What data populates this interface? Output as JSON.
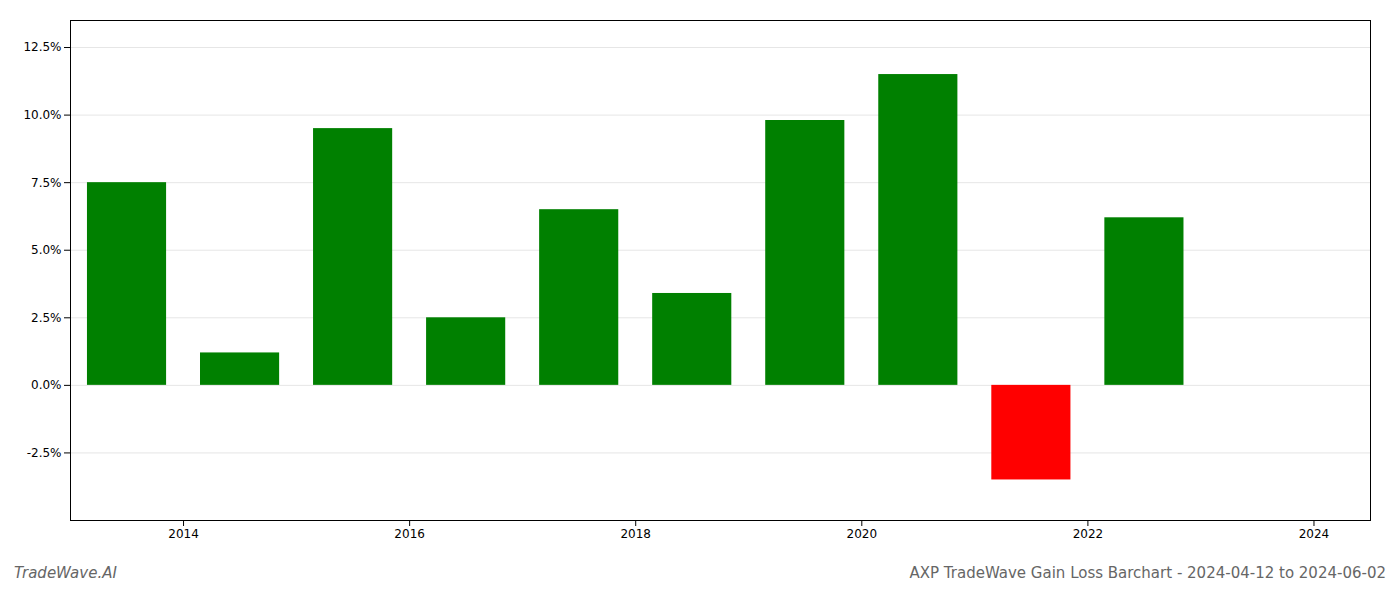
{
  "chart_data": {
    "type": "bar",
    "title": "AXP TradeWave Gain Loss Barchart - 2024-04-12 to 2024-06-02",
    "annotations": [
      "TradeWave.AI"
    ],
    "x": [
      2013.5,
      2014.5,
      2015.5,
      2016.5,
      2017.5,
      2018.5,
      2019.5,
      2020.5,
      2021.5,
      2022.5,
      2023.5
    ],
    "values": [
      0.075,
      0.012,
      0.095,
      0.025,
      0.065,
      0.034,
      0.098,
      0.115,
      -0.035,
      0.062,
      0.0
    ],
    "colors": [
      "#008000",
      "#008000",
      "#008000",
      "#008000",
      "#008000",
      "#008000",
      "#008000",
      "#008000",
      "#ff0000",
      "#008000",
      "#008000"
    ],
    "xlim": [
      2013.0,
      2024.5
    ],
    "xticks": [
      2014,
      2016,
      2018,
      2020,
      2022,
      2024
    ],
    "ylim": [
      -0.05,
      0.135
    ],
    "yticks": [
      {
        "value": -0.025,
        "label": "-2.5%"
      },
      {
        "value": 0.0,
        "label": "0.0%"
      },
      {
        "value": 0.025,
        "label": "2.5%"
      },
      {
        "value": 0.05,
        "label": "5.0%"
      },
      {
        "value": 0.075,
        "label": "7.5%"
      },
      {
        "value": 0.1,
        "label": "10.0%"
      },
      {
        "value": 0.125,
        "label": "12.5%"
      }
    ],
    "grid": true
  }
}
